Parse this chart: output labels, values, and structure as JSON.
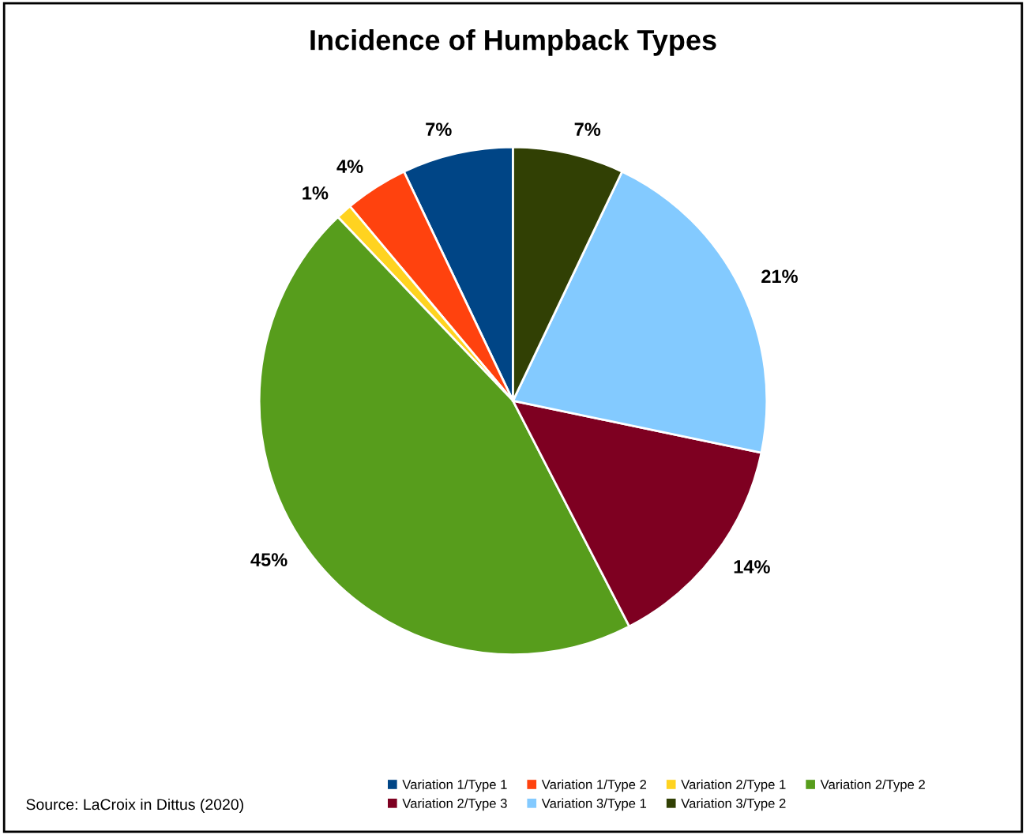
{
  "chart_data": {
    "type": "pie",
    "title": "Incidence of Humpback Types",
    "categories": [
      "Variation 1/Type 1",
      "Variation 1/Type 2",
      "Variation 2/Type 1",
      "Variation 2/Type 2",
      "Variation 2/Type 3",
      "Variation 3/Type 1",
      "Variation 3/Type 2"
    ],
    "values": [
      7,
      4,
      1,
      45,
      14,
      21,
      7
    ],
    "value_labels": [
      "7%",
      "4%",
      "1%",
      "45%",
      "14%",
      "21%",
      "7%"
    ],
    "colors": [
      "#004586",
      "#ff420e",
      "#ffd320",
      "#579d1c",
      "#7e0021",
      "#83caff",
      "#314004"
    ],
    "legend": "bottom",
    "annotations": [
      "Source: LaCroix in Dittus (2020)"
    ]
  }
}
